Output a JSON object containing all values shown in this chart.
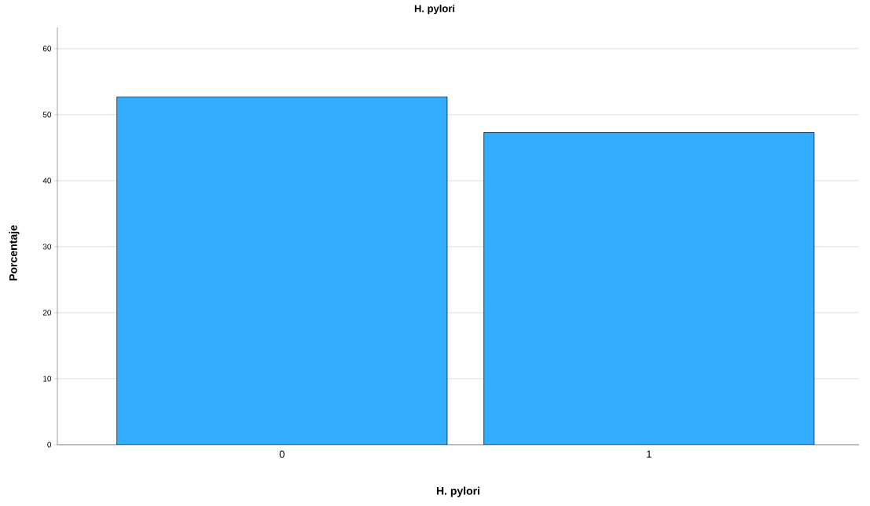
{
  "chart_data": {
    "type": "bar",
    "title": "H. pylori",
    "xlabel": "H. pylori",
    "ylabel": "Porcentaje",
    "categories": [
      "0",
      "1"
    ],
    "values": [
      52.7,
      47.3
    ],
    "color": "#33adff",
    "ylim": [
      0,
      63.2
    ],
    "yticks": [
      0,
      10,
      20,
      30,
      40,
      50,
      60
    ],
    "grid": "y"
  }
}
